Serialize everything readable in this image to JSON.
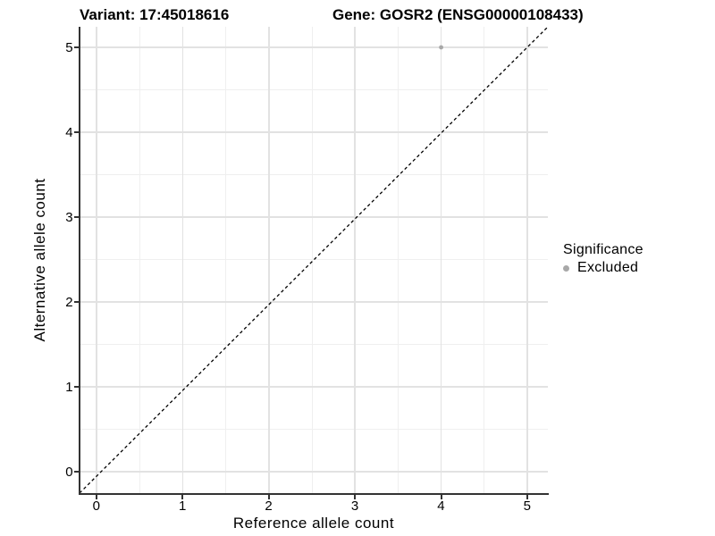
{
  "chart_data": {
    "type": "scatter",
    "title_left": "Variant: 17:45018616",
    "title_right": "Gene: GOSR2 (ENSG00000108433)",
    "xlabel": "Reference allele count",
    "ylabel": "Alternative allele count",
    "x_ticks": [
      "0",
      "1",
      "2",
      "3",
      "4",
      "5"
    ],
    "y_ticks": [
      "0",
      "1",
      "2",
      "3",
      "4",
      "5"
    ],
    "xlim": [
      -0.25,
      5.25
    ],
    "ylim": [
      -0.25,
      5.25
    ],
    "grid": "major and minor gridlines on",
    "legend_position": "right",
    "series": [
      {
        "name": "Excluded",
        "points": [
          {
            "x": 4,
            "y": 5
          }
        ],
        "color": "#a8a8a8"
      }
    ],
    "reference_line": {
      "equation": "y = x",
      "style": "dashed",
      "color": "#000000"
    },
    "legend": {
      "title": "Significance",
      "items": [
        {
          "label": "Excluded",
          "color": "#a8a8a8",
          "marker": "circle"
        }
      ]
    }
  },
  "colors": {
    "background": "#ffffff",
    "grid_major": "#e2e2e2",
    "grid_minor": "#efefef",
    "axis_line": "#333333",
    "text": "#000000",
    "point": "#a8a8a8"
  }
}
